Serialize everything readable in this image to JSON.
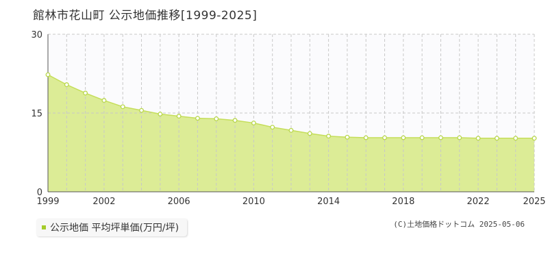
{
  "title": "館林市花山町 公示地価推移[1999-2025]",
  "legend": {
    "label": "公示地価 平均坪単価(万円/坪)"
  },
  "copyright": "(C)土地価格ドットコム 2025-05-06",
  "colors": {
    "fill": "#dcec96",
    "line": "#c5de5a",
    "point_stroke": "#b8d74a",
    "swatch": "#a5cc2b",
    "grid": "#c8c8c8"
  },
  "chart_data": {
    "type": "area",
    "title": "館林市花山町 公示地価推移[1999-2025]",
    "xlabel": "",
    "ylabel": "",
    "ylim": [
      0,
      30
    ],
    "xlim": [
      1999,
      2025
    ],
    "y_ticks": [
      "0",
      "15",
      "30"
    ],
    "x_ticks": [
      "1999",
      "2002",
      "2006",
      "2010",
      "2014",
      "2018",
      "2022",
      "2025"
    ],
    "grid": true,
    "series": [
      {
        "name": "公示地価 平均坪単価(万円/坪)",
        "x": [
          1999,
          2000,
          2001,
          2002,
          2003,
          2004,
          2005,
          2006,
          2007,
          2008,
          2009,
          2010,
          2011,
          2012,
          2013,
          2014,
          2015,
          2016,
          2017,
          2018,
          2019,
          2020,
          2021,
          2022,
          2023,
          2024,
          2025
        ],
        "values": [
          22.3,
          20.4,
          18.8,
          17.4,
          16.2,
          15.5,
          14.8,
          14.4,
          14.0,
          13.9,
          13.6,
          13.1,
          12.3,
          11.7,
          11.1,
          10.6,
          10.4,
          10.3,
          10.3,
          10.3,
          10.3,
          10.3,
          10.3,
          10.2,
          10.2,
          10.2,
          10.2
        ]
      }
    ]
  }
}
